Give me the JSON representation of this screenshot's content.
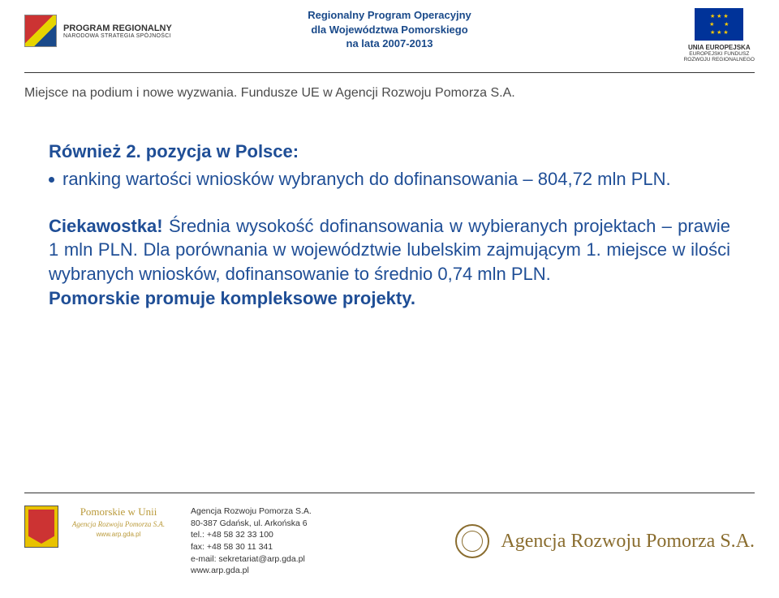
{
  "header": {
    "left_logo": {
      "line1": "PROGRAM REGIONALNY",
      "line2": "NARODOWA STRATEGIA SPÓJNOŚCI"
    },
    "center": {
      "line1": "Regionalny Program Operacyjny",
      "line2": "dla Województwa Pomorskiego",
      "line3": "na lata 2007-2013"
    },
    "right_logo": {
      "line1": "UNIA EUROPEJSKA",
      "line2": "EUROPEJSKI FUNDUSZ",
      "line3": "ROZWOJU REGIONALNEGO"
    }
  },
  "subheader": "Miejsce na podium i nowe wyzwania. Fundusze UE w Agencji Rozwoju Pomorza S.A.",
  "content": {
    "heading": "Również 2. pozycja w Polsce:",
    "bullet": "ranking wartości wniosków wybranych do dofinansowania – 804,72 mln PLN.",
    "para2_lead": "Ciekawostka!",
    "para2_rest": " Średnia wysokość dofinansowania w wybieranych projektach – prawie 1 mln PLN. Dla porównania w województwie lubelskim zajmującym 1. miejsce w ilości wybranych wniosków, dofinansowanie to średnio 0,74 mln PLN.",
    "para3": "Pomorskie promuje kompleksowe projekty."
  },
  "footer": {
    "pomorskie": {
      "line1": "Pomorskie w Unii",
      "line2": "Agencja Rozwoju Pomorza S.A.",
      "line3": "www.arp.gda.pl"
    },
    "address": {
      "l1": "Agencja Rozwoju Pomorza S.A.",
      "l2": "80-387 Gdańsk, ul. Arkońska 6",
      "l3": "tel.: +48  58 32 33 100",
      "l4": "fax: +48 58 30 11 341",
      "l5": "e-mail: sekretariat@arp.gda.pl",
      "l6": "www.arp.gda.pl"
    },
    "right_logo": "Agencja Rozwoju Pomorza S.A."
  },
  "colors": {
    "primary_text": "#1f4e96",
    "header_text": "#1a4a8a",
    "gold": "#8a6d2f",
    "eu_blue": "#003399",
    "eu_gold": "#ffcc00"
  }
}
